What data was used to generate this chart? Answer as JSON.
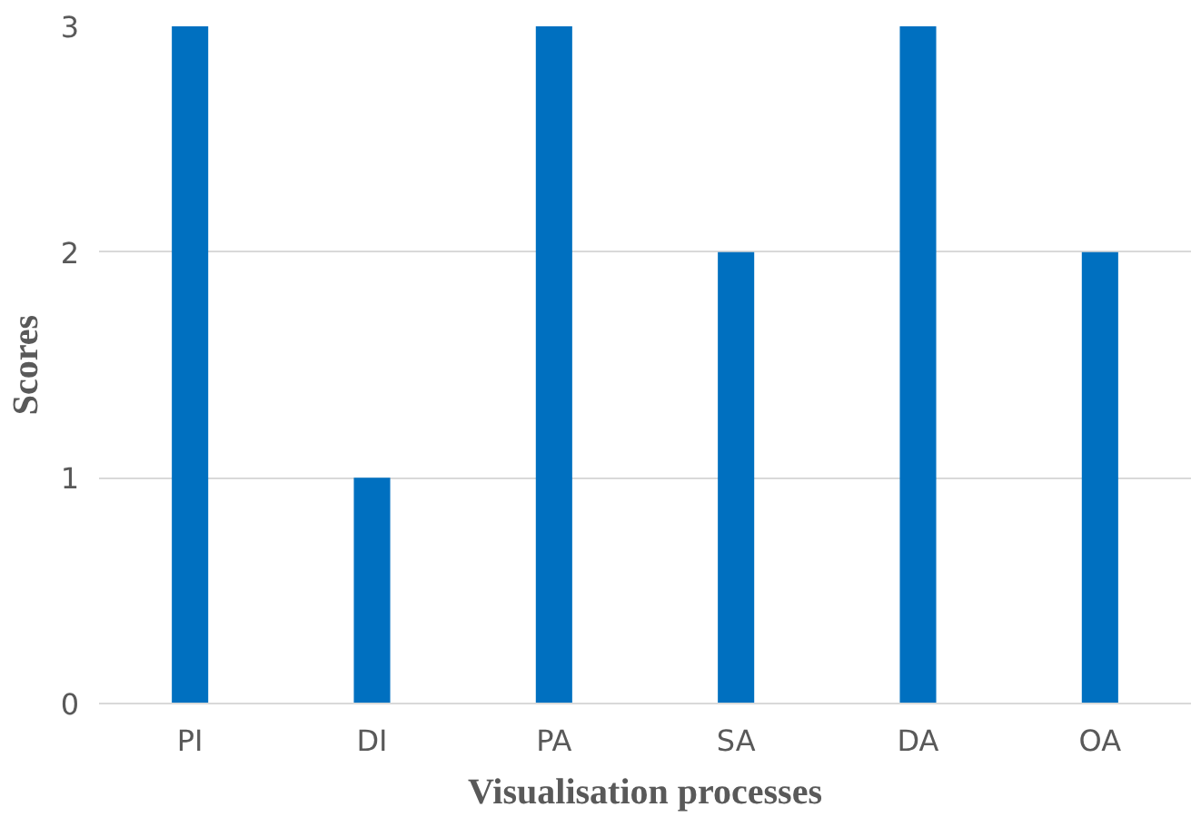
{
  "chart_data": {
    "type": "bar",
    "xlabel": "Visualisation processes",
    "ylabel": "Scores",
    "categories": [
      "PI",
      "DI",
      "PA",
      "SA",
      "DA",
      "OA"
    ],
    "values": [
      3,
      1,
      3,
      2,
      3,
      2
    ],
    "color": "#0070c0",
    "ylim": [
      0,
      3
    ],
    "yticks": [
      0,
      1,
      2,
      3
    ],
    "grid": "y"
  }
}
